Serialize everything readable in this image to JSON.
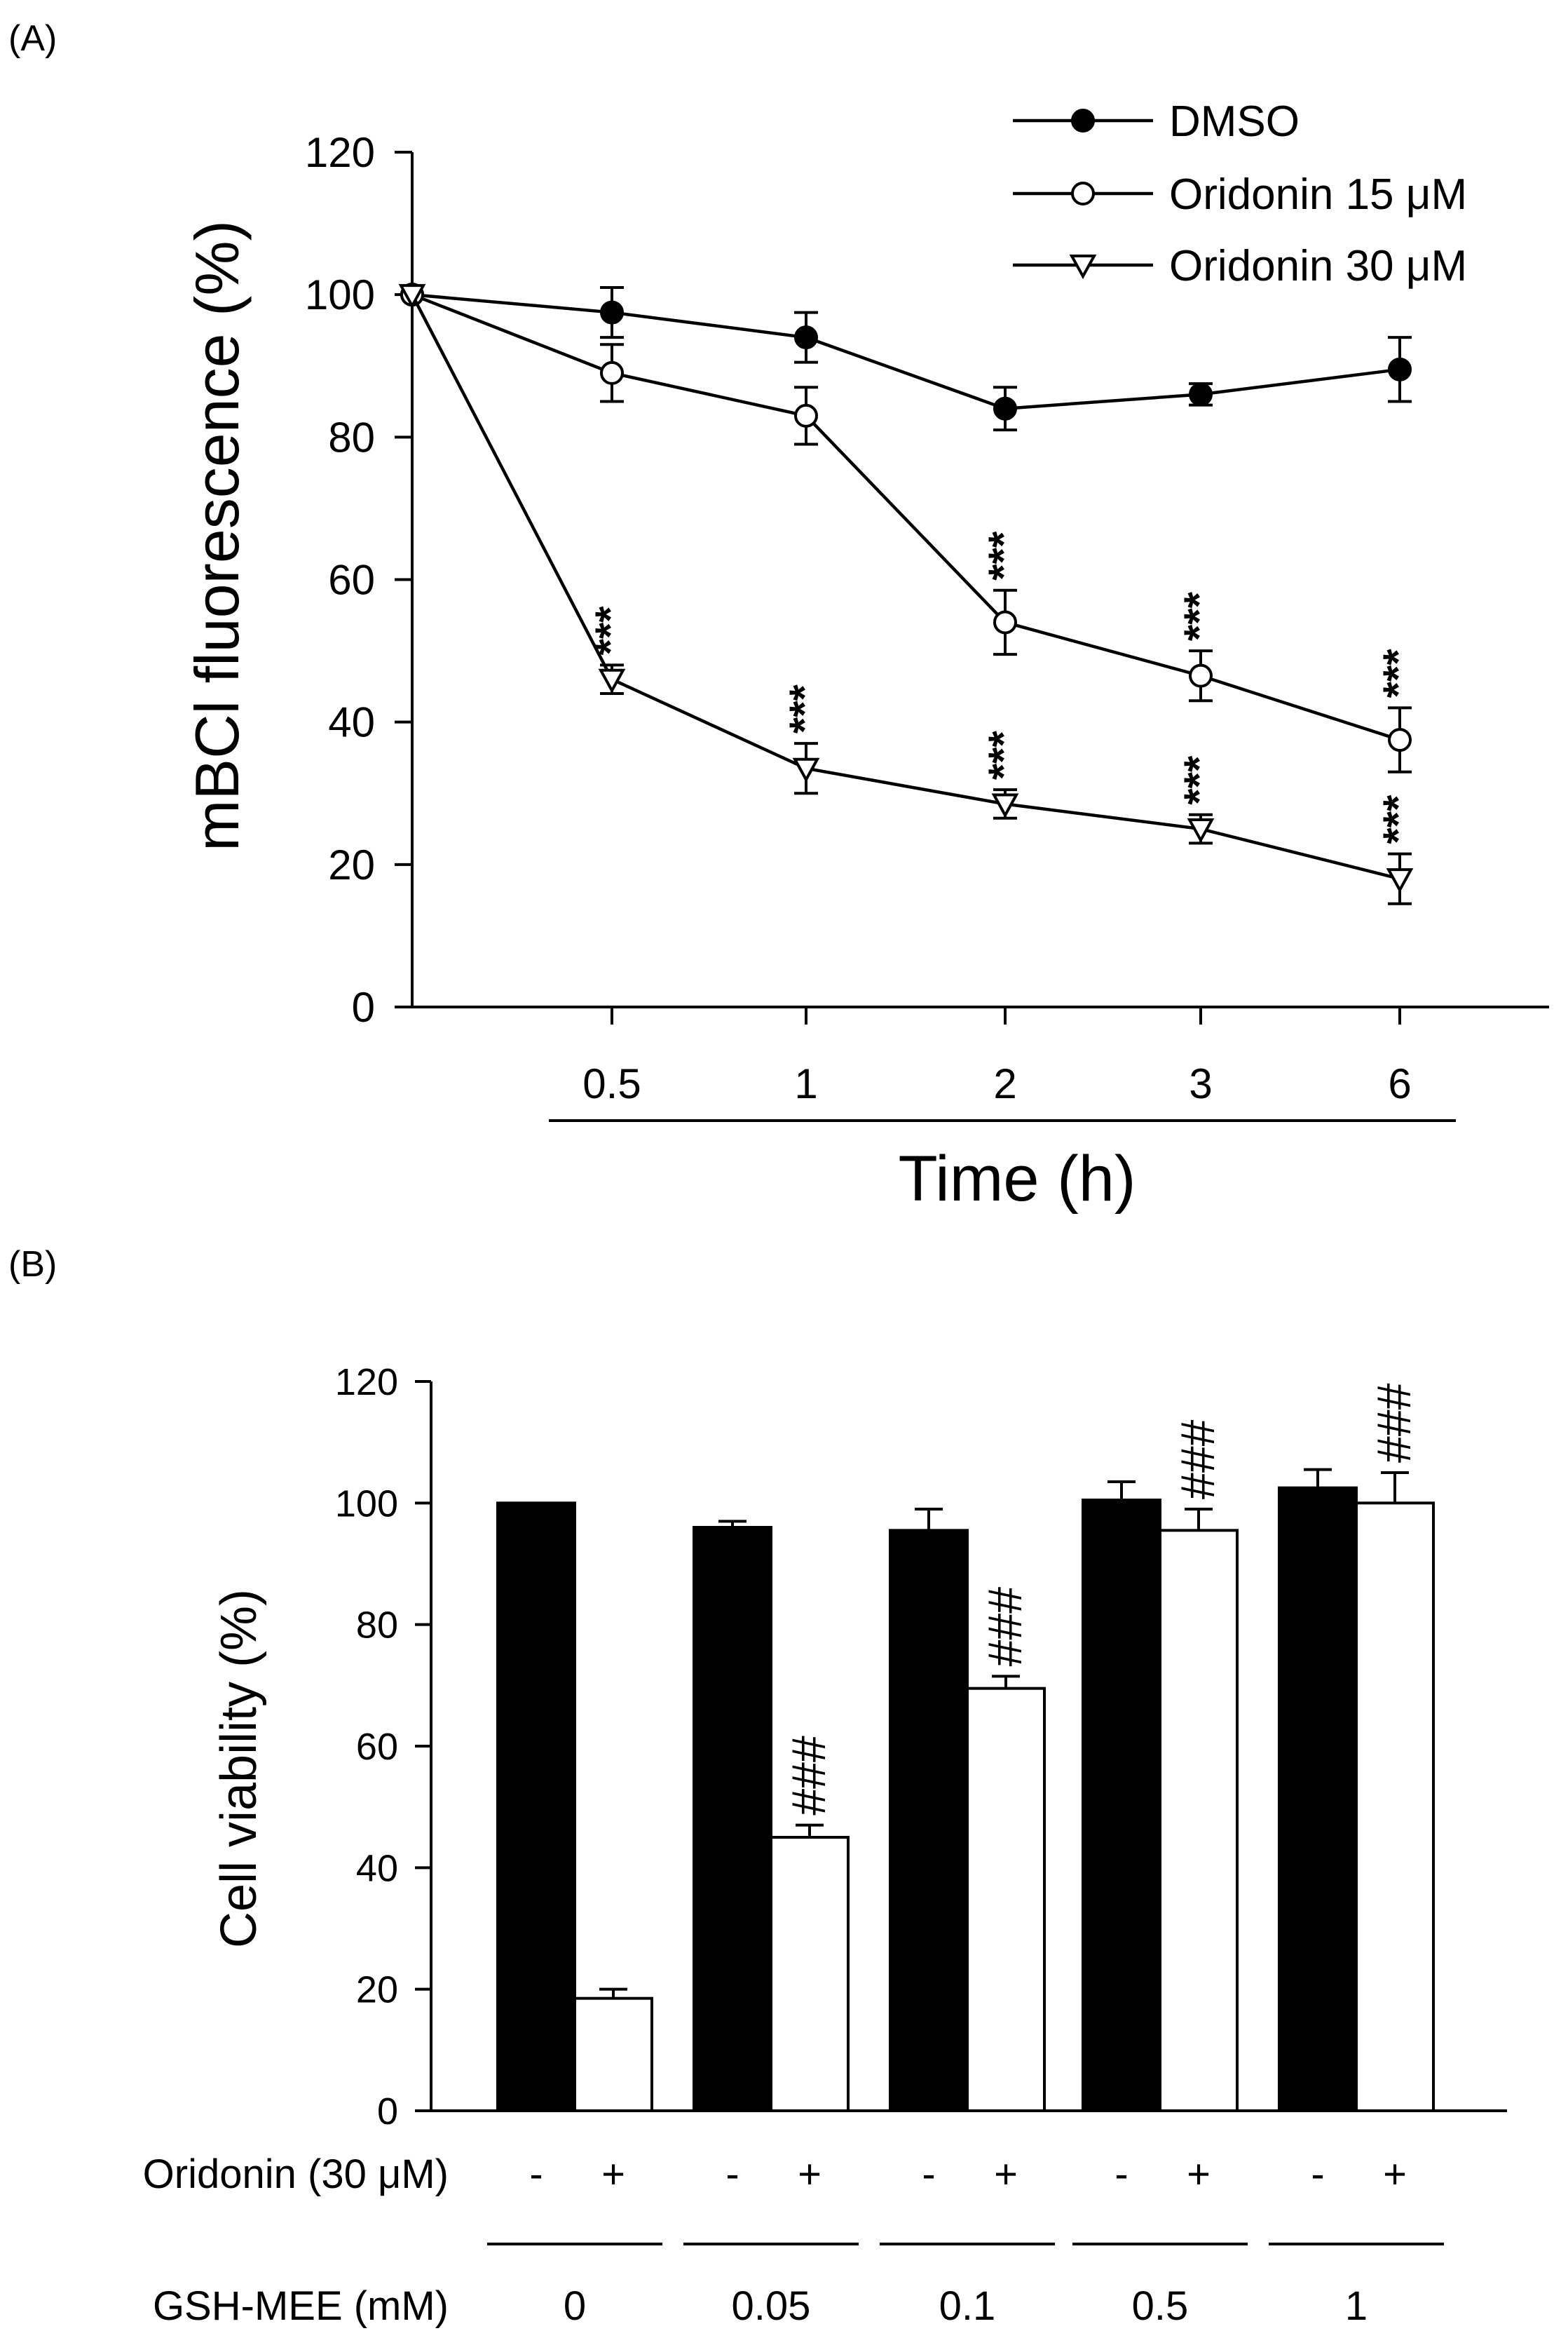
{
  "panel_a": {
    "label": "(A)",
    "chart_data": {
      "type": "line",
      "ylabel": "mBCl fluorescence (%)",
      "xlabel": "Time (h)",
      "ylim": [
        0,
        120
      ],
      "yticks": [
        0,
        20,
        40,
        60,
        80,
        100,
        120
      ],
      "x_tick_labels": [
        "0.5",
        "1",
        "2",
        "3",
        "6"
      ],
      "x_positions_label": [
        "0",
        "0.5",
        "1",
        "2",
        "3",
        "6"
      ],
      "series": [
        {
          "name": "DMSO",
          "marker": "filled-circle",
          "values": [
            100,
            97.5,
            94,
            84,
            86,
            89.5
          ],
          "errors": [
            0,
            3.5,
            3.5,
            3,
            1.5,
            4.5
          ],
          "sig": [
            "",
            "",
            "",
            "",
            "",
            ""
          ]
        },
        {
          "name": "Oridonin 15 μM",
          "marker": "open-circle",
          "values": [
            100,
            89,
            83,
            54,
            46.5,
            37.5
          ],
          "errors": [
            0,
            4,
            4,
            4.5,
            3.5,
            4.5
          ],
          "sig": [
            "",
            "",
            "",
            "***",
            "***",
            "***"
          ]
        },
        {
          "name": "Oridonin 30 μM",
          "marker": "open-triangle",
          "values": [
            100,
            46,
            33.5,
            28.5,
            25,
            18
          ],
          "errors": [
            0,
            2,
            3.5,
            2,
            2,
            3.5
          ],
          "sig": [
            "",
            "***",
            "***",
            "***",
            "***",
            "***"
          ]
        }
      ]
    }
  },
  "panel_b": {
    "label": "(B)",
    "chart_data": {
      "type": "bar",
      "ylabel": "Cell viability (%)",
      "ylim": [
        0,
        120
      ],
      "yticks": [
        0,
        20,
        40,
        60,
        80,
        100,
        120
      ],
      "row1_label": "Oridonin (30 μM)",
      "row2_label": "GSH-MEE (mM)",
      "categories": [
        "0",
        "0.05",
        "0.1",
        "0.5",
        "1"
      ],
      "series": [
        {
          "name": "-",
          "color": "#000000",
          "values": [
            100,
            96,
            95.5,
            100.5,
            102.5
          ],
          "errors": [
            0,
            1,
            3.5,
            3,
            3
          ],
          "sig": [
            "",
            "",
            "",
            "",
            ""
          ]
        },
        {
          "name": "+",
          "color": "#ffffff",
          "values": [
            18.5,
            45,
            69.5,
            95.5,
            100
          ],
          "errors": [
            1.5,
            2,
            2,
            3.5,
            5
          ],
          "sig": [
            "",
            "###",
            "###",
            "###",
            "###"
          ]
        }
      ]
    }
  }
}
